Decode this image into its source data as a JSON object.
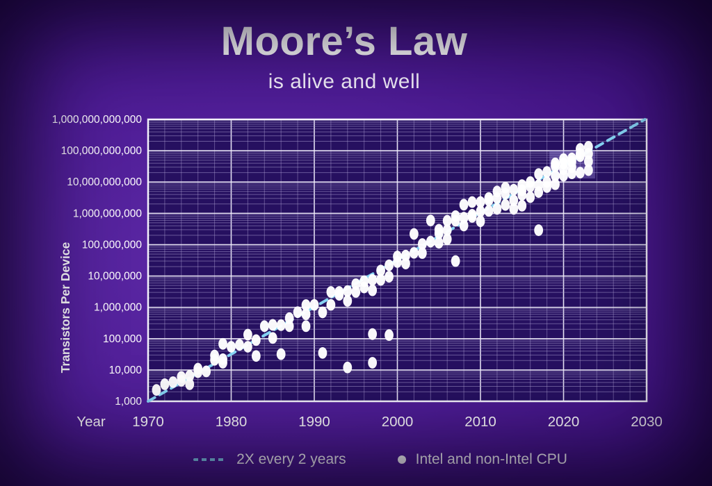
{
  "title": "Moore’s Law",
  "subtitle": "is alive and well",
  "colors": {
    "background_outer": "#4e1c95",
    "plot_bg": "#261060",
    "plot_border": "#f5f3fc",
    "grid_major": "#efecfa",
    "grid_minor": "#ac9fd2",
    "trend_line": "#85d2f2",
    "point": "#ffffff",
    "text": "#ffffff",
    "highlight_box": "#9d8fe0"
  },
  "y_axis": {
    "label": "Transistors Per Device",
    "ticks": [
      "1,000",
      "10,000",
      "100,000",
      "1,000,000",
      "10,000,000",
      "100,000,000",
      "1,000,000,000",
      "10,000,000,000",
      "100,000,000,000",
      "1,000,000,000,000"
    ]
  },
  "x_axis": {
    "label": "Year",
    "ticks": [
      "1970",
      "1980",
      "1990",
      "2000",
      "2010",
      "2020",
      "2030"
    ]
  },
  "legend": [
    {
      "type": "dashed-line",
      "label": "2X every 2 years"
    },
    {
      "type": "dot",
      "label": "Intel and non-Intel CPU"
    }
  ],
  "chart_data": {
    "type": "scatter",
    "title": "Moore's Law is alive and well",
    "xlabel": "Year",
    "ylabel": "Transistors Per Device",
    "x_range": [
      1970,
      2030
    ],
    "y_range": [
      1000,
      1000000000000
    ],
    "y_scale": "log",
    "grid": true,
    "legend_position": "bottom",
    "series_label": "Intel and non-Intel CPU",
    "trend": {
      "label": "2X every 2 years",
      "start_year": 1970,
      "start_value": 1000,
      "doubling_years": 2
    },
    "highlight_box": {
      "x1": 2018.3,
      "x2": 2023.8,
      "y1": 13000000000,
      "y2": 101000000000
    },
    "points": [
      [
        1971,
        2300
      ],
      [
        1972,
        3500
      ],
      [
        1973,
        4100
      ],
      [
        1974,
        6000
      ],
      [
        1974,
        4500
      ],
      [
        1975,
        3500
      ],
      [
        1975,
        6500
      ],
      [
        1976,
        8500
      ],
      [
        1976,
        11000
      ],
      [
        1977,
        9000
      ],
      [
        1978,
        29000
      ],
      [
        1978,
        21000
      ],
      [
        1979,
        68000
      ],
      [
        1979,
        22000
      ],
      [
        1979,
        17000
      ],
      [
        1980,
        55000
      ],
      [
        1981,
        63000
      ],
      [
        1982,
        134000
      ],
      [
        1982,
        55000
      ],
      [
        1983,
        28000
      ],
      [
        1983,
        90000
      ],
      [
        1984,
        250000
      ],
      [
        1985,
        275000
      ],
      [
        1985,
        105000
      ],
      [
        1986,
        32000
      ],
      [
        1986,
        270000
      ],
      [
        1987,
        450000
      ],
      [
        1987,
        250000
      ],
      [
        1988,
        700000
      ],
      [
        1989,
        1180000
      ],
      [
        1989,
        600000
      ],
      [
        1989,
        250000
      ],
      [
        1990,
        1200000
      ],
      [
        1991,
        690000
      ],
      [
        1991,
        35000
      ],
      [
        1992,
        1200000
      ],
      [
        1992,
        3100000
      ],
      [
        1993,
        3100000
      ],
      [
        1993,
        2500000
      ],
      [
        1994,
        3300000
      ],
      [
        1994,
        1600000
      ],
      [
        1994,
        12000
      ],
      [
        1995,
        5500000
      ],
      [
        1995,
        3100000
      ],
      [
        1996,
        4300000
      ],
      [
        1996,
        6800000
      ],
      [
        1997,
        7500000
      ],
      [
        1997,
        3500000
      ],
      [
        1997,
        140000
      ],
      [
        1997,
        17000
      ],
      [
        1998,
        7500000
      ],
      [
        1998,
        15000000
      ],
      [
        1999,
        9500000
      ],
      [
        1999,
        22000000
      ],
      [
        1999,
        130000
      ],
      [
        2000,
        42000000
      ],
      [
        2000,
        28000000
      ],
      [
        2001,
        45000000
      ],
      [
        2001,
        25000000
      ],
      [
        2002,
        55000000
      ],
      [
        2002,
        220000000
      ],
      [
        2003,
        105000000
      ],
      [
        2003,
        54000000
      ],
      [
        2004,
        125000000
      ],
      [
        2004,
        592000000
      ],
      [
        2005,
        230000000
      ],
      [
        2005,
        115000000
      ],
      [
        2005,
        300000000
      ],
      [
        2006,
        291000000
      ],
      [
        2006,
        580000000
      ],
      [
        2006,
        150000000
      ],
      [
        2007,
        580000000
      ],
      [
        2007,
        820000000
      ],
      [
        2007,
        30000000
      ],
      [
        2008,
        730000000
      ],
      [
        2008,
        1900000000
      ],
      [
        2008,
        410000000
      ],
      [
        2009,
        770000000
      ],
      [
        2009,
        2300000000
      ],
      [
        2009,
        900000000
      ],
      [
        2010,
        1170000000
      ],
      [
        2010,
        2300000000
      ],
      [
        2010,
        560000000
      ],
      [
        2011,
        2600000000
      ],
      [
        2011,
        1200000000
      ],
      [
        2011,
        3100000000
      ],
      [
        2012,
        3100000000
      ],
      [
        2012,
        1400000000
      ],
      [
        2012,
        5000000000
      ],
      [
        2013,
        4300000000
      ],
      [
        2013,
        1860000000
      ],
      [
        2013,
        6600000000
      ],
      [
        2014,
        5700000000
      ],
      [
        2014,
        2600000000
      ],
      [
        2014,
        1400000000
      ],
      [
        2015,
        8000000000
      ],
      [
        2015,
        5500000000
      ],
      [
        2015,
        3900000000
      ],
      [
        2015,
        1750000000
      ],
      [
        2016,
        7200000000
      ],
      [
        2016,
        10000000000
      ],
      [
        2016,
        3300000000
      ],
      [
        2017,
        18000000000
      ],
      [
        2017,
        8000000000
      ],
      [
        2017,
        4800000000
      ],
      [
        2017,
        290000000
      ],
      [
        2018,
        21000000000
      ],
      [
        2018,
        10000000000
      ],
      [
        2018,
        6900000000
      ],
      [
        2019,
        32000000000
      ],
      [
        2019,
        16000000000
      ],
      [
        2019,
        8500000000
      ],
      [
        2019,
        39500000000
      ],
      [
        2020,
        39000000000
      ],
      [
        2020,
        16000000000
      ],
      [
        2020,
        26000000000
      ],
      [
        2020,
        54000000000
      ],
      [
        2021,
        57000000000
      ],
      [
        2021,
        30000000000
      ],
      [
        2021,
        19000000000
      ],
      [
        2021,
        45000000000
      ],
      [
        2022,
        114000000000
      ],
      [
        2022,
        80000000000
      ],
      [
        2022,
        67000000000
      ],
      [
        2022,
        20000000000
      ],
      [
        2023,
        134000000000
      ],
      [
        2023,
        80000000000
      ],
      [
        2023,
        46000000000
      ],
      [
        2023,
        24000000000
      ]
    ]
  }
}
